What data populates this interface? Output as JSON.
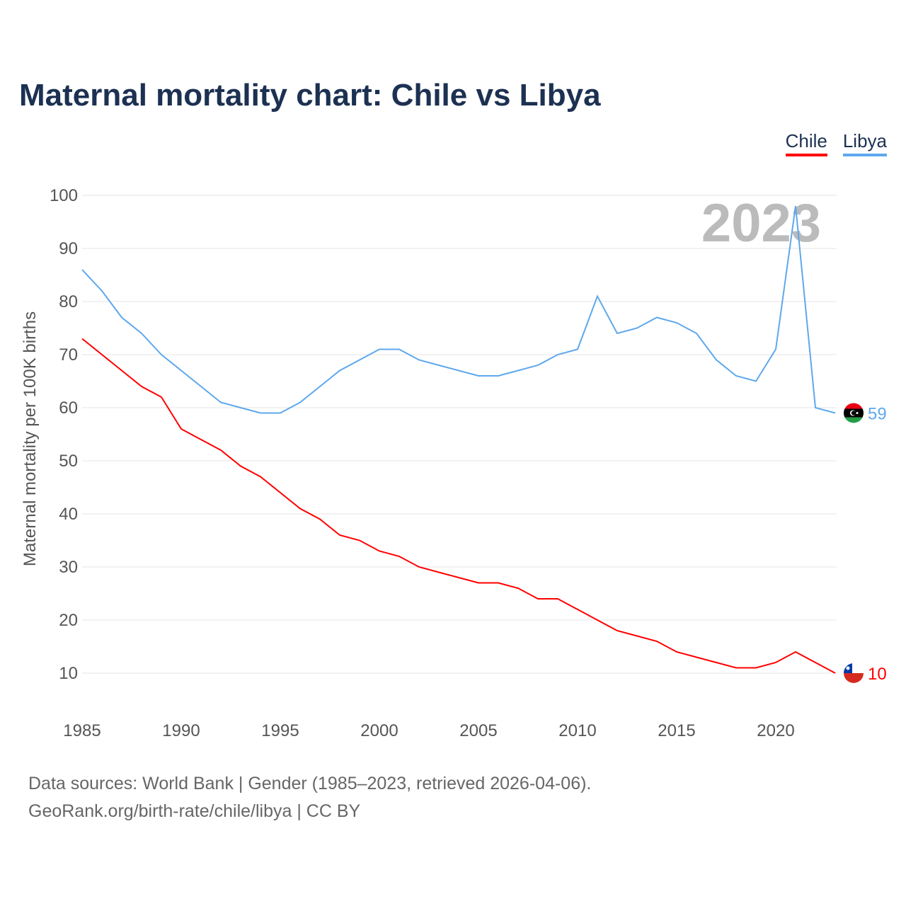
{
  "chart_data": {
    "type": "line",
    "title": "Maternal mortality chart: Chile vs Libya",
    "ylabel": "Maternal mortality per 100K births",
    "xlabel": "",
    "xlim": [
      1985,
      2023
    ],
    "ylim": [
      0,
      100
    ],
    "yticks": [
      10,
      20,
      30,
      40,
      50,
      60,
      70,
      80,
      90,
      100
    ],
    "xticks": [
      1985,
      1990,
      1995,
      2000,
      2005,
      2010,
      2015,
      2020
    ],
    "year_label": "2023",
    "legend_position": "top-right",
    "x": [
      1985,
      1986,
      1987,
      1988,
      1989,
      1990,
      1991,
      1992,
      1993,
      1994,
      1995,
      1996,
      1997,
      1998,
      1999,
      2000,
      2001,
      2002,
      2003,
      2004,
      2005,
      2006,
      2007,
      2008,
      2009,
      2010,
      2011,
      2012,
      2013,
      2014,
      2015,
      2016,
      2017,
      2018,
      2019,
      2020,
      2021,
      2022,
      2023
    ],
    "series": [
      {
        "name": "Chile",
        "color": "#ff0000",
        "end_label": "10",
        "values": [
          73,
          70,
          67,
          64,
          62,
          56,
          54,
          52,
          49,
          47,
          44,
          41,
          39,
          36,
          35,
          33,
          32,
          30,
          29,
          28,
          27,
          27,
          26,
          24,
          24,
          22,
          20,
          18,
          17,
          16,
          14,
          13,
          12,
          11,
          11,
          12,
          14,
          12,
          10
        ]
      },
      {
        "name": "Libya",
        "color": "#5ea8ec",
        "end_label": "59",
        "values": [
          86,
          82,
          77,
          74,
          70,
          67,
          64,
          61,
          60,
          59,
          59,
          61,
          64,
          67,
          69,
          71,
          71,
          69,
          68,
          67,
          66,
          66,
          67,
          68,
          70,
          71,
          81,
          74,
          75,
          77,
          76,
          74,
          69,
          66,
          65,
          71,
          98,
          60,
          59
        ]
      }
    ]
  },
  "footer": {
    "line1": "Data sources: World Bank | Gender (1985–2023, retrieved 2026-04-06).",
    "line2": "GeoRank.org/birth-rate/chile/libya | CC BY"
  }
}
